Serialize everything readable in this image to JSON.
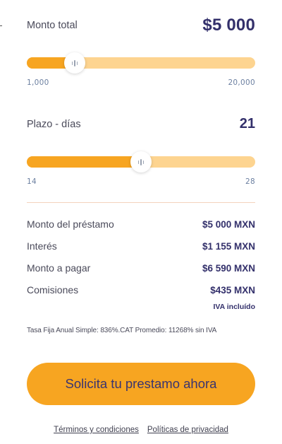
{
  "amount": {
    "label": "Monto total",
    "value": "$5 000",
    "slider": {
      "min_label": "1,000",
      "max_label": "20,000",
      "fraction": 0.21
    }
  },
  "term": {
    "label": "Plazo - días",
    "value": "21",
    "slider": {
      "min_label": "14",
      "max_label": "28",
      "fraction": 0.5
    }
  },
  "summary": {
    "loan_label": "Monto del préstamo",
    "loan_value": "$5 000 MXN",
    "interest_label": "Interés",
    "interest_value": "$1 155 MXN",
    "total_label": "Monto a pagar",
    "total_value": "$6 590 MXN",
    "fees_label": "Comisiones",
    "fees_value": "$435 MXN",
    "iva_note": "IVA incluído"
  },
  "disclaimer": "Tasa Fija Anual Simple: 836%.CAT Promedio: 11268% sin IVA",
  "cta_label": "Solicita tu prestamo ahora",
  "footer": {
    "terms_label": "Términos y condiciones",
    "privacy_label": "Políticas de privacidad"
  },
  "colors": {
    "accent": "#f7a521",
    "track": "#fdd490",
    "heading": "#33306b"
  }
}
